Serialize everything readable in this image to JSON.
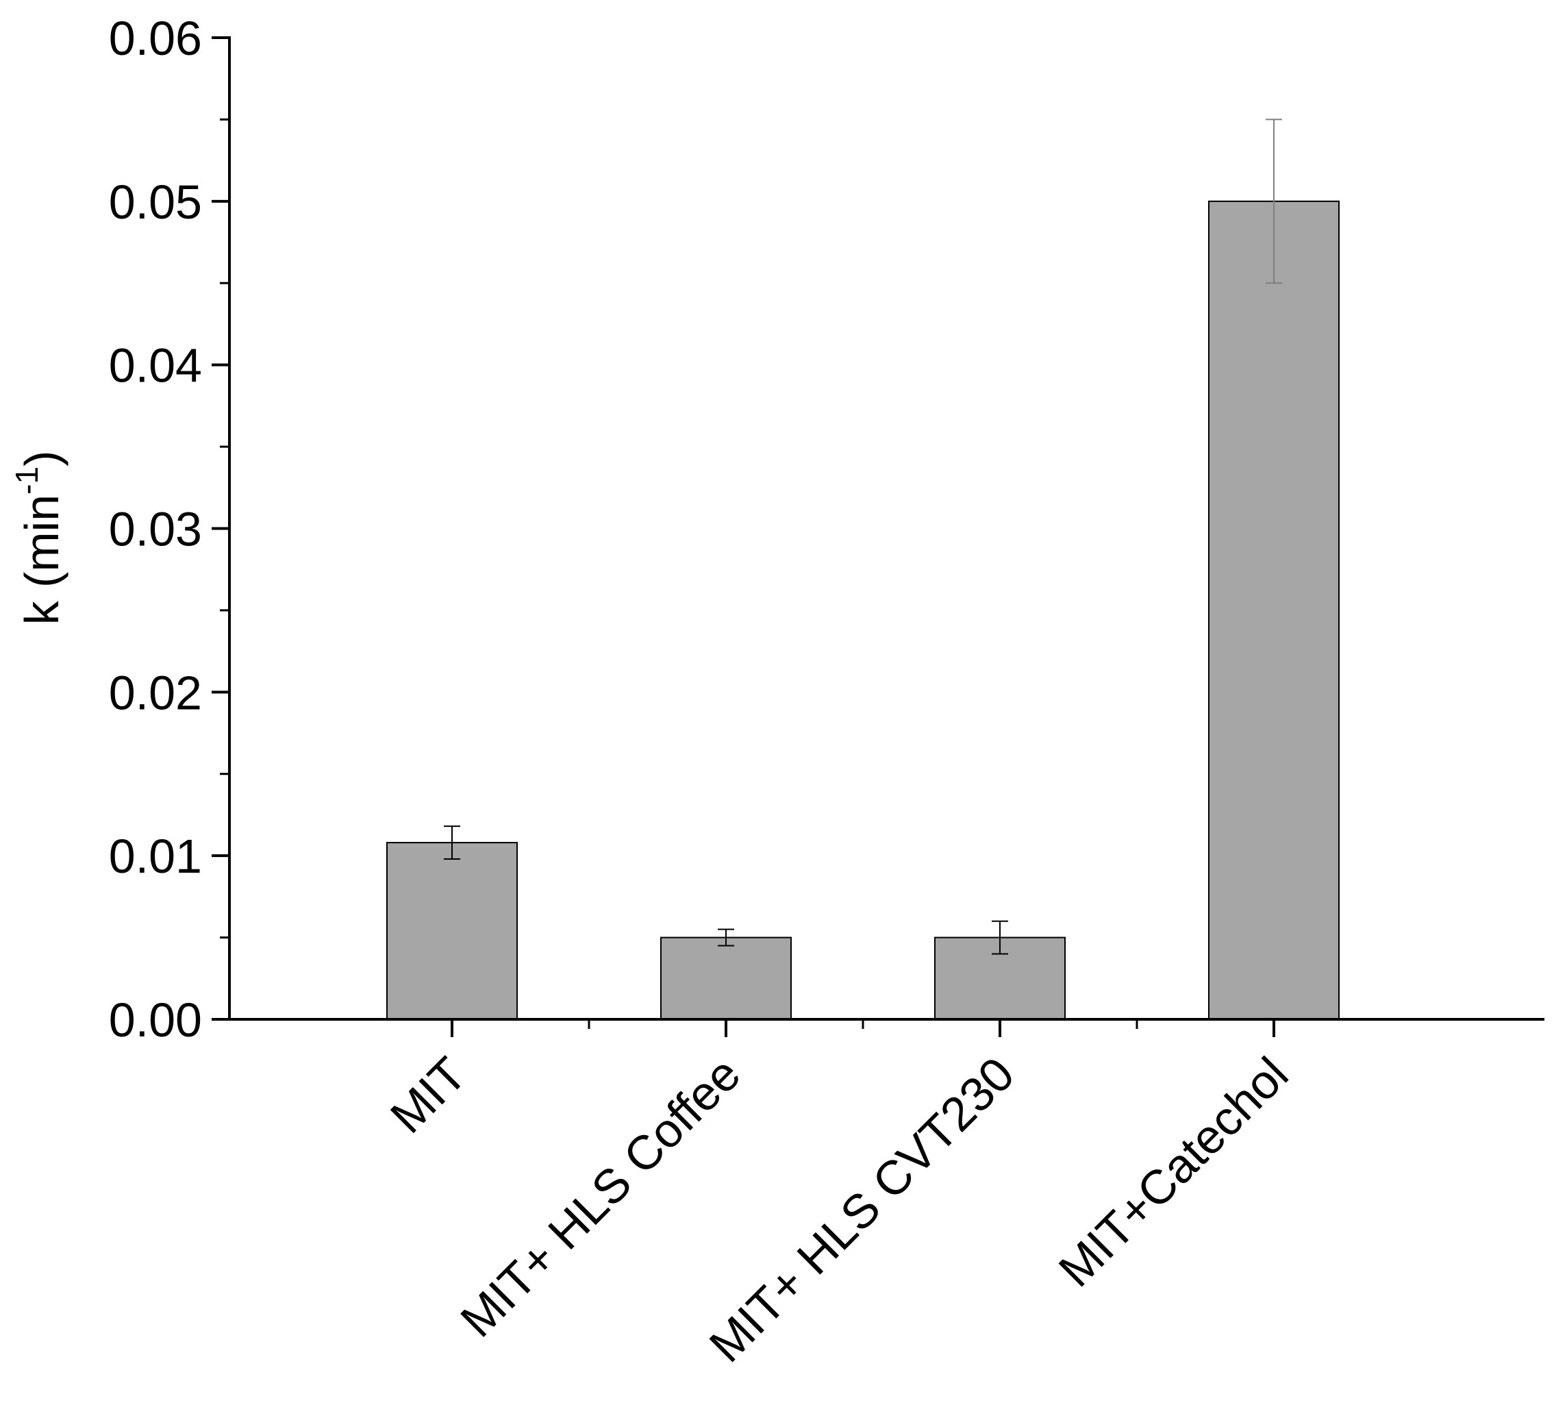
{
  "chart_data": {
    "type": "bar",
    "categories": [
      "MIT",
      "MIT+ HLS Coffee",
      "MIT+ HLS CVT230",
      "MIT+Catechol"
    ],
    "values": [
      0.0108,
      0.005,
      0.005,
      0.05
    ],
    "errors": [
      0.001,
      0.0005,
      0.001,
      0.005
    ],
    "ylabel": {
      "base": "k (min",
      "superscript": "-1",
      "close": ")"
    },
    "ylim": [
      0,
      0.06
    ],
    "yticks": [
      "0.00",
      "0.01",
      "0.02",
      "0.03",
      "0.04",
      "0.05",
      "0.06"
    ],
    "bar_color": "#a6a6a6",
    "grid": false,
    "legend": "none"
  }
}
